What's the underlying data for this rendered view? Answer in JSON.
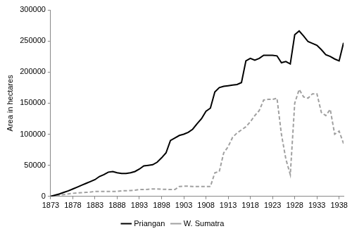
{
  "chart_data": {
    "type": "line",
    "y_label": "Area in hectares",
    "x": [
      1873,
      1874,
      1875,
      1876,
      1877,
      1878,
      1879,
      1880,
      1881,
      1882,
      1883,
      1884,
      1885,
      1886,
      1887,
      1888,
      1889,
      1890,
      1891,
      1892,
      1893,
      1894,
      1895,
      1896,
      1897,
      1898,
      1899,
      1900,
      1901,
      1902,
      1903,
      1904,
      1905,
      1906,
      1907,
      1908,
      1909,
      1910,
      1911,
      1912,
      1913,
      1914,
      1915,
      1916,
      1917,
      1918,
      1919,
      1920,
      1921,
      1922,
      1923,
      1924,
      1925,
      1926,
      1927,
      1928,
      1929,
      1930,
      1931,
      1932,
      1933,
      1934,
      1935,
      1936,
      1937,
      1938,
      1939
    ],
    "series": [
      {
        "name": "Priangan",
        "color": "#000000",
        "line_style": "solid",
        "values": [
          0,
          2000,
          4000,
          6500,
          9000,
          12000,
          15000,
          18000,
          21000,
          24000,
          27000,
          32000,
          35000,
          39000,
          40000,
          38000,
          37000,
          37000,
          38000,
          40000,
          44000,
          49000,
          50000,
          51000,
          55000,
          62000,
          70000,
          90000,
          94000,
          98000,
          100000,
          103000,
          108000,
          117000,
          125000,
          137000,
          142000,
          168000,
          175000,
          177000,
          178000,
          179000,
          180000,
          183000,
          218000,
          222000,
          219000,
          222000,
          227000,
          227000,
          227000,
          226000,
          215000,
          217000,
          213000,
          260000,
          266000,
          258000,
          249000,
          246000,
          243000,
          236000,
          228000,
          225000,
          221000,
          218000,
          247000
        ]
      },
      {
        "name": "W. Sumatra",
        "color": "#a0a0a0",
        "line_style": "dashed",
        "values": [
          0,
          1000,
          2000,
          3000,
          4000,
          5000,
          5500,
          6000,
          6500,
          7000,
          8000,
          8000,
          8000,
          8000,
          8000,
          8000,
          9000,
          9000,
          9500,
          10000,
          11000,
          11000,
          11500,
          12000,
          12000,
          11500,
          11500,
          11000,
          11000,
          16000,
          16500,
          16500,
          16000,
          16000,
          16000,
          16000,
          16000,
          38000,
          40000,
          70000,
          80000,
          95000,
          102000,
          107000,
          112000,
          120000,
          130000,
          138000,
          155000,
          156000,
          156000,
          158000,
          100000,
          60000,
          35000,
          150000,
          172000,
          160000,
          158000,
          165000,
          165000,
          135000,
          130000,
          140000,
          100000,
          105000,
          85000
        ]
      }
    ],
    "xlim": [
      1873,
      1939
    ],
    "xticks": [
      1873,
      1878,
      1883,
      1888,
      1893,
      1898,
      1903,
      1908,
      1913,
      1918,
      1923,
      1928,
      1933,
      1938
    ],
    "ylim": [
      0,
      300000
    ],
    "yticks": [
      0,
      50000,
      100000,
      150000,
      200000,
      250000,
      300000
    ],
    "grid": false,
    "legend": "bottom"
  }
}
